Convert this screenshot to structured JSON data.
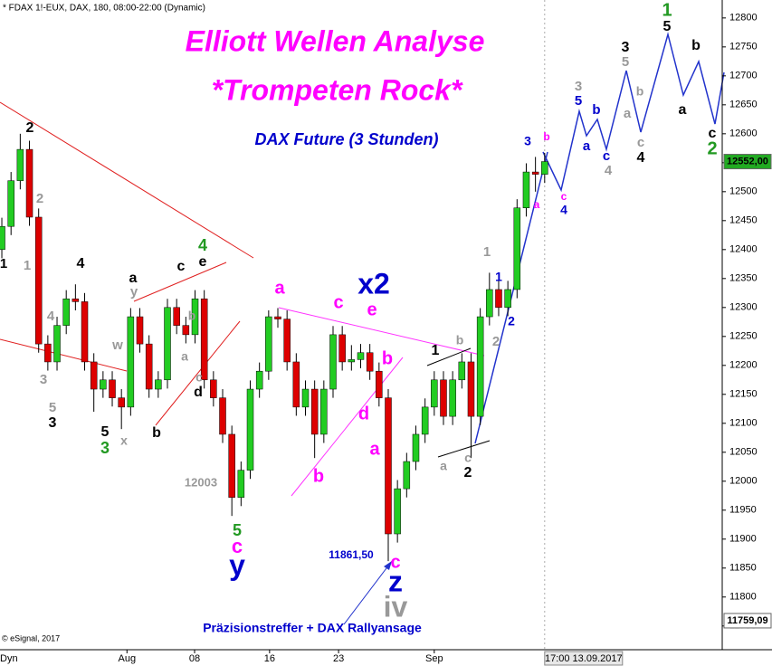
{
  "chart_data": {
    "type": "candlestick",
    "header": "* FDAX 1!-EUX, DAX, 180, 08:00-22:00 (Dynamic)",
    "copyright": "© eSignal, 2017",
    "corner_label": "Dyn",
    "up_color": "#22cc22",
    "down_color": "#dd0000",
    "x": [
      0,
      1,
      2,
      3,
      4,
      5,
      6,
      7,
      8,
      9,
      10,
      11,
      12,
      13,
      14,
      15,
      16,
      17,
      18,
      19,
      20,
      21,
      22,
      23,
      24,
      25,
      26,
      27,
      28,
      29,
      30,
      31,
      32,
      33,
      34,
      35,
      36,
      37,
      38,
      39,
      40,
      41,
      42,
      43,
      44,
      45,
      46,
      47,
      48,
      49,
      50,
      51,
      52,
      53,
      54,
      55,
      56,
      57,
      58,
      59
    ],
    "open": [
      12400,
      12440,
      12519,
      12573,
      12456,
      12237,
      12206,
      12269,
      12315,
      12310,
      12206,
      12159,
      12175,
      12144,
      12128,
      12284,
      12237,
      12159,
      12175,
      12300,
      12269,
      12253,
      12315,
      12175,
      12144,
      12081,
      11972,
      12019,
      12159,
      12190,
      12284,
      12280,
      12206,
      12128,
      12159,
      12081,
      12159,
      12253,
      12206,
      12210,
      12222,
      12190,
      12144,
      11909,
      11987,
      12034,
      12081,
      12128,
      12175,
      12112,
      12175,
      12206,
      12112,
      12284,
      12331,
      12300,
      12331,
      12472,
      12534,
      12530
    ],
    "high": [
      12455,
      12534,
      12600,
      12588,
      12471,
      12252,
      12284,
      12330,
      12340,
      12325,
      12221,
      12190,
      12190,
      12159,
      12299,
      12299,
      12252,
      12190,
      12315,
      12315,
      12284,
      12330,
      12330,
      12190,
      12159,
      12096,
      12034,
      12174,
      12205,
      12295,
      12299,
      12295,
      12221,
      12174,
      12174,
      12174,
      12268,
      12268,
      12235,
      12237,
      12237,
      12205,
      12159,
      12002,
      12049,
      12096,
      12143,
      12190,
      12190,
      12190,
      12221,
      12221,
      12299,
      12360,
      12346,
      12346,
      12487,
      12549,
      12560,
      12567
    ],
    "low": [
      12385,
      12425,
      12504,
      12441,
      12222,
      12191,
      12191,
      12254,
      12295,
      12191,
      12120,
      12144,
      12129,
      12090,
      12113,
      12222,
      12144,
      12144,
      12160,
      12254,
      12238,
      12238,
      12160,
      12129,
      12066,
      11940,
      11957,
      12004,
      12144,
      12175,
      12265,
      12191,
      12113,
      12113,
      12040,
      12066,
      12144,
      12191,
      12191,
      12195,
      12175,
      12129,
      11862,
      11894,
      11972,
      12019,
      12066,
      12113,
      12097,
      12097,
      12160,
      12040,
      12097,
      12269,
      12285,
      12285,
      12316,
      12457,
      12500,
      12515
    ],
    "close": [
      12440,
      12519,
      12573,
      12456,
      12237,
      12206,
      12269,
      12315,
      12310,
      12206,
      12159,
      12175,
      12144,
      12128,
      12284,
      12237,
      12159,
      12175,
      12300,
      12269,
      12253,
      12315,
      12175,
      12144,
      12081,
      11972,
      12019,
      12159,
      12190,
      12284,
      12280,
      12206,
      12128,
      12159,
      12081,
      12159,
      12253,
      12206,
      12210,
      12222,
      12190,
      12144,
      11909,
      11987,
      12034,
      12081,
      12128,
      12175,
      12112,
      12175,
      12206,
      12112,
      12284,
      12331,
      12300,
      12331,
      12472,
      12534,
      12530,
      12552
    ],
    "xlim": [
      -0.2,
      78.3
    ],
    "xticks": [
      {
        "value": 13.6,
        "label": "Aug"
      },
      {
        "value": 20.95,
        "label": "08"
      },
      {
        "value": 29.1,
        "label": "16"
      },
      {
        "value": 36.6,
        "label": "23"
      },
      {
        "value": 47,
        "label": "Sep"
      }
    ],
    "cursor_label": {
      "value": 59,
      "label": "17:00 13.09.2017"
    },
    "ylim": [
      11709,
      12831
    ],
    "yticks": [
      11750,
      11800,
      11850,
      11900,
      11950,
      12000,
      12050,
      12100,
      12150,
      12200,
      12250,
      12300,
      12350,
      12400,
      12450,
      12500,
      12550,
      12600,
      12650,
      12700,
      12750,
      12800
    ],
    "price_markers": [
      {
        "value": 12552,
        "label": "12552,00",
        "color": "#22aa22"
      },
      {
        "value": 11759.09,
        "label": "11759,09",
        "color": "#ffffff"
      }
    ],
    "annotations": [
      {
        "text": "Elliott Wellen Analyse",
        "color": "#ff00ff"
      },
      {
        "text": "*Trompeten Rock*",
        "color": "#ff00ff"
      },
      {
        "text": "DAX Future (3 Stunden)",
        "color": "#0000cc"
      },
      {
        "text": "2",
        "color": "#000000"
      },
      {
        "text": "2",
        "color": "#999999"
      },
      {
        "text": "1",
        "color": "#000000"
      },
      {
        "text": "1",
        "color": "#999999"
      },
      {
        "text": "4",
        "color": "#999999"
      },
      {
        "text": "4",
        "color": "#000000"
      },
      {
        "text": "3",
        "color": "#999999"
      },
      {
        "text": "5",
        "color": "#999999"
      },
      {
        "text": "3",
        "color": "#000000"
      },
      {
        "text": "w",
        "color": "#999999"
      },
      {
        "text": "a",
        "color": "#000000"
      },
      {
        "text": "y",
        "color": "#999999"
      },
      {
        "text": "5",
        "color": "#000000"
      },
      {
        "text": "3",
        "color": "#229922"
      },
      {
        "text": "x",
        "color": "#999999"
      },
      {
        "text": "b",
        "color": "#000000"
      },
      {
        "text": "c",
        "color": "#000000"
      },
      {
        "text": "e",
        "color": "#000000"
      },
      {
        "text": "4",
        "color": "#229922"
      },
      {
        "text": "b",
        "color": "#999999"
      },
      {
        "text": "a",
        "color": "#999999"
      },
      {
        "text": "c",
        "color": "#999999"
      },
      {
        "text": "d",
        "color": "#000000"
      },
      {
        "text": "12003",
        "color": "#999999"
      },
      {
        "text": "5",
        "color": "#229922"
      },
      {
        "text": "c",
        "color": "#ff00ff"
      },
      {
        "text": "y",
        "color": "#0000cc"
      },
      {
        "text": "a",
        "color": "#ff00ff"
      },
      {
        "text": "c",
        "color": "#ff00ff"
      },
      {
        "text": "x2",
        "color": "#0000cc"
      },
      {
        "text": "e",
        "color": "#ff00ff"
      },
      {
        "text": "b",
        "color": "#ff00ff"
      },
      {
        "text": "d",
        "color": "#ff00ff"
      },
      {
        "text": "b",
        "color": "#ff00ff"
      },
      {
        "text": "a",
        "color": "#ff00ff"
      },
      {
        "text": "11861,50",
        "color": "#0000cc"
      },
      {
        "text": "c",
        "color": "#ff00ff"
      },
      {
        "text": "z",
        "color": "#0000cc"
      },
      {
        "text": "iv",
        "color": "#999999"
      },
      {
        "text": "Präzisionstreffer + DAX Rallyansage",
        "color": "#0000cc"
      },
      {
        "text": "1",
        "color": "#000000"
      },
      {
        "text": "b",
        "color": "#999999"
      },
      {
        "text": "a",
        "color": "#999999"
      },
      {
        "text": "c",
        "color": "#999999"
      },
      {
        "text": "2",
        "color": "#000000"
      },
      {
        "text": "1",
        "color": "#999999"
      },
      {
        "text": "1",
        "color": "#0000cc"
      },
      {
        "text": "2",
        "color": "#0000cc"
      },
      {
        "text": "2",
        "color": "#999999"
      },
      {
        "text": "3",
        "color": "#0000cc"
      },
      {
        "text": "b",
        "color": "#ff00ff"
      },
      {
        "text": "a",
        "color": "#ff00ff"
      },
      {
        "text": "c",
        "color": "#ff00ff"
      },
      {
        "text": "4",
        "color": "#0000cc"
      },
      {
        "text": "3",
        "color": "#999999"
      },
      {
        "text": "5",
        "color": "#0000cc"
      },
      {
        "text": "b",
        "color": "#0000cc"
      },
      {
        "text": "a",
        "color": "#0000cc"
      },
      {
        "text": "c",
        "color": "#0000cc"
      },
      {
        "text": "4",
        "color": "#999999"
      },
      {
        "text": "3",
        "color": "#000000"
      },
      {
        "text": "5",
        "color": "#999999"
      },
      {
        "text": "b",
        "color": "#999999"
      },
      {
        "text": "a",
        "color": "#999999"
      },
      {
        "text": "c",
        "color": "#999999"
      },
      {
        "text": "4",
        "color": "#000000"
      },
      {
        "text": "1",
        "color": "#229922"
      },
      {
        "text": "5",
        "color": "#000000"
      },
      {
        "text": "b",
        "color": "#000000"
      },
      {
        "text": "a",
        "color": "#000000"
      },
      {
        "text": "c",
        "color": "#000000"
      },
      {
        "text": "2",
        "color": "#229922"
      }
    ]
  }
}
